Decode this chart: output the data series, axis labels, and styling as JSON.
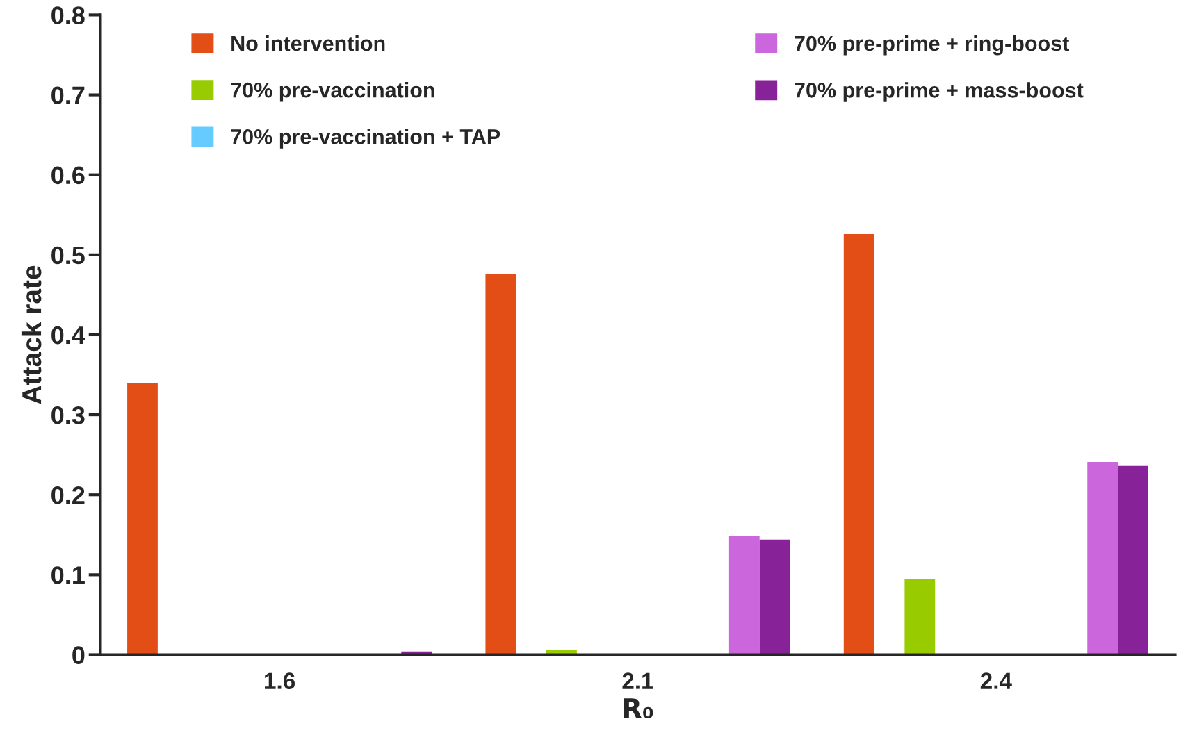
{
  "chart_data": {
    "type": "bar",
    "xlabel": "R₀",
    "ylabel": "Attack rate",
    "categories": [
      "1.6",
      "2.1",
      "2.4"
    ],
    "series": [
      {
        "name": "No intervention",
        "color": "#e34e17",
        "values": [
          0.34,
          0.476,
          0.526
        ]
      },
      {
        "values": [
          null,
          null,
          null
        ]
      },
      {
        "name": "70% pre-vaccination",
        "color": "#99cc00",
        "values": [
          0,
          0.006,
          0.095
        ]
      },
      {
        "values": [
          null,
          null,
          null
        ]
      },
      {
        "values": [
          null,
          null,
          null
        ]
      },
      {
        "name": "70% pre-vaccination + TAP",
        "color": "#66ccff",
        "values": [
          0,
          0,
          0
        ]
      },
      {
        "values": [
          null,
          null,
          null
        ]
      },
      {
        "values": [
          null,
          null,
          null
        ]
      },
      {
        "name": "70% pre-prime + ring-boost",
        "color": "#cc66dd",
        "values": [
          0,
          0.149,
          0.241
        ]
      },
      {
        "name": "70% pre-prime + mass-boost",
        "color": "#882299",
        "values": [
          0.004,
          0.144,
          0.236
        ]
      }
    ],
    "ylim": [
      0,
      0.8
    ],
    "yticks": [
      0,
      0.1,
      0.2,
      0.3,
      0.4,
      0.5,
      0.6,
      0.7,
      0.8
    ],
    "grid": false,
    "legend": "top"
  }
}
